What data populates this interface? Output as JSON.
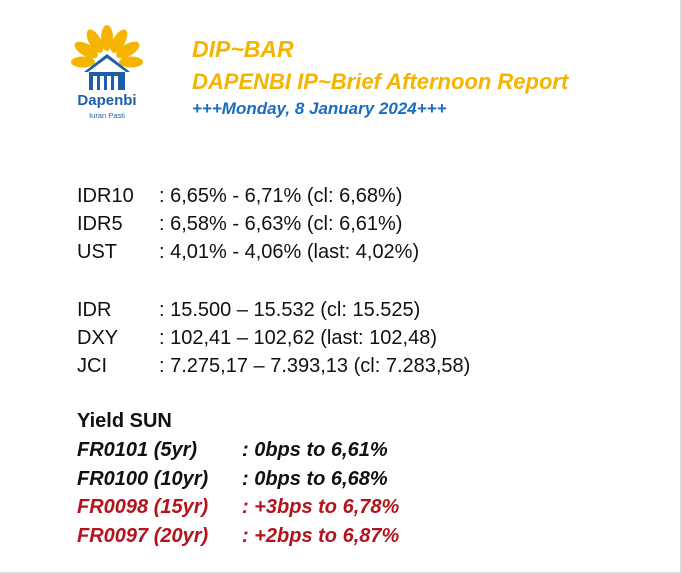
{
  "logo": {
    "name": "Dapenbi",
    "tagline": "Iuran Pasti",
    "colors": {
      "petal": "#f5b400",
      "house": "#1f5ea8"
    }
  },
  "header": {
    "title": "DIP~BAR",
    "subtitle": "DAPENBI IP~Brief Afternoon Report",
    "date": "+++Monday, 8 January 2024+++"
  },
  "rates": [
    {
      "label": "IDR10",
      "value": ": 6,65% - 6,71% (cl: 6,68%)"
    },
    {
      "label": "IDR5",
      "value": ": 6,58% - 6,63% (cl: 6,61%)"
    },
    {
      "label": "UST",
      "value": ": 4,01% - 4,06% (last: 4,02%)"
    }
  ],
  "markets": [
    {
      "label": "IDR",
      "value": ": 15.500 – 15.532 (cl: 15.525)"
    },
    {
      "label": "DXY",
      "value": ": 102,41 – 102,62 (last: 102,48)"
    },
    {
      "label": "JCI",
      "value": ": 7.275,17 – 7.393,13 (cl: 7.283,58)"
    }
  ],
  "yield_sun": {
    "heading": "Yield SUN",
    "rows": [
      {
        "label": "FR0101 (5yr)",
        "value": ": 0bps to 6,61%",
        "color": "#111111"
      },
      {
        "label": "FR0100 (10yr)",
        "value": ": 0bps to 6,68%",
        "color": "#111111"
      },
      {
        "label": "FR0098 (15yr)",
        "value": ": +3bps to 6,78%",
        "color": "#b3141c"
      },
      {
        "label": "FR0097 (20yr)",
        "value": ": +2bps to 6,87%",
        "color": "#b3141c"
      }
    ]
  }
}
